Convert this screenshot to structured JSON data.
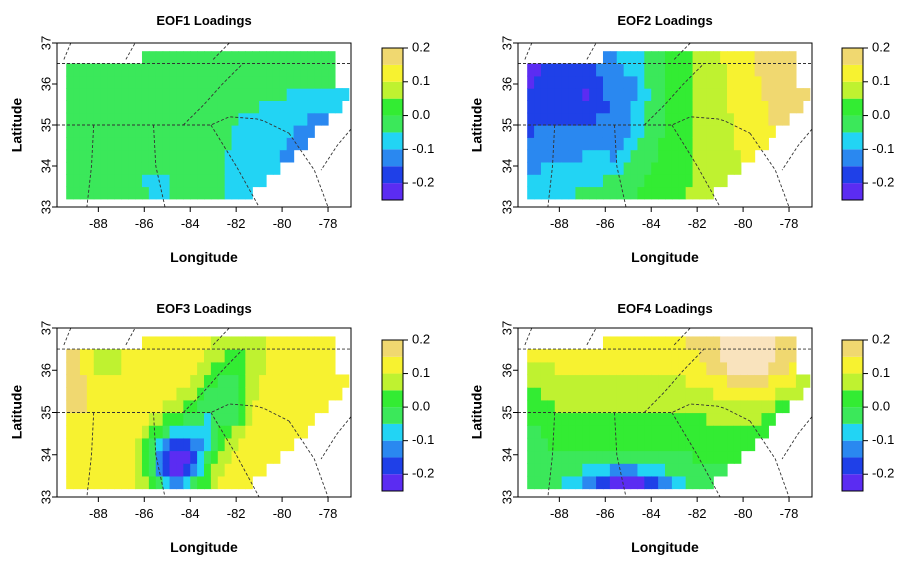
{
  "chart_data": [
    {
      "type": "heatmap",
      "id": "eof1",
      "title": "EOF1 Loadings",
      "xlabel": "Longitude",
      "ylabel": "Latitude",
      "xticks": [
        -88,
        -86,
        -84,
        -82,
        -80,
        -78
      ],
      "yticks": [
        33,
        34,
        35,
        36,
        37
      ],
      "xlim": [
        -89.8,
        -77.0
      ],
      "ylim": [
        33.0,
        37.0
      ],
      "colorbar_ticks": [
        "0.2",
        "0.1",
        "0.0",
        "-0.1",
        "-0.2"
      ],
      "zlim": [
        -0.25,
        0.2
      ],
      "field": "Mostly 0.0 to -0.05 in the west and north; -0.1 over the southeast with -0.15 along the east coast"
    },
    {
      "type": "heatmap",
      "id": "eof2",
      "title": "EOF2 Loadings",
      "xlabel": "Longitude",
      "ylabel": "Latitude",
      "xticks": [
        -88,
        -86,
        -84,
        -82,
        -80,
        -78
      ],
      "yticks": [
        33,
        34,
        35,
        36,
        37
      ],
      "xlim": [
        -89.8,
        -77.0
      ],
      "ylim": [
        33.0,
        37.0
      ],
      "colorbar_ticks": [
        "0.2",
        "0.1",
        "0.0",
        "-0.1",
        "-0.2"
      ],
      "zlim": [
        -0.25,
        0.2
      ],
      "field": "Negative (-0.1 to -0.15) center-west around -86 lon; positive (0.1 to 0.15) in the east"
    },
    {
      "type": "heatmap",
      "id": "eof3",
      "title": "EOF3 Loadings",
      "xlabel": "Longitude",
      "ylabel": "Latitude",
      "xticks": [
        -88,
        -86,
        -84,
        -82,
        -80,
        -78
      ],
      "yticks": [
        33,
        34,
        35,
        36,
        37
      ],
      "xlim": [
        -89.8,
        -77.0
      ],
      "ylim": [
        33.0,
        37.0
      ],
      "colorbar_ticks": [
        "0.2",
        "0.1",
        "0.0",
        "-0.1",
        "-0.2"
      ],
      "zlim": [
        -0.25,
        0.2
      ],
      "field": "Strong negative (-0.2) minimum near -84.7 lon / 33.9 lat, negative band to the northeast; positive (0.1 to 0.15) in the west and along the edges"
    },
    {
      "type": "heatmap",
      "id": "eof4",
      "title": "EOF4 Loadings",
      "xlabel": "Longitude",
      "ylabel": "Latitude",
      "xticks": [
        -88,
        -86,
        -84,
        -82,
        -80,
        -78
      ],
      "yticks": [
        33,
        34,
        35,
        36,
        37
      ],
      "xlim": [
        -89.8,
        -77.0
      ],
      "ylim": [
        33.0,
        37.0
      ],
      "colorbar_ticks": [
        "0.2",
        "0.1",
        "0.0",
        "-0.1",
        "-0.2"
      ],
      "zlim": [
        -0.25,
        0.2
      ],
      "field": "Positive (0.05 to 0.2) in the north with max near -79.8 lon / 36.4 lat; strong negative (-0.2) along the southern edge near -85 lon"
    }
  ],
  "colors": {
    "bin_neg025": "#5b2cf2",
    "bin_neg020": "#1f40e8",
    "bin_neg015": "#2a88f0",
    "bin_neg010": "#22d4f4",
    "bin_neg005": "#3be85a",
    "bin_000": "#33ec33",
    "bin_005": "#bff230",
    "bin_010": "#f7f230",
    "bin_015": "#f0d870",
    "bin_020": "#f9e3bd",
    "bin_max": "#ffffff"
  }
}
